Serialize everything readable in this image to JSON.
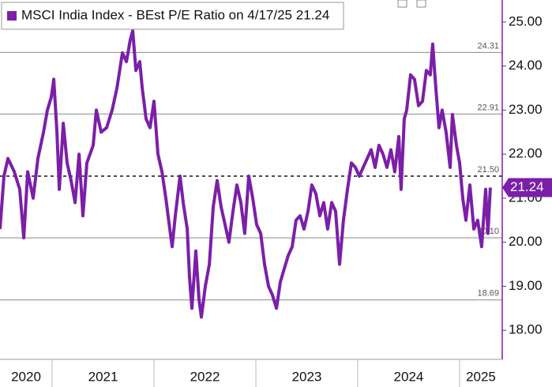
{
  "chart_data": {
    "type": "line",
    "ylim": [
      17.34,
      25.5
    ],
    "yticks": [
      {
        "value": 25,
        "label": "25.00"
      },
      {
        "value": 24,
        "label": "24.00"
      },
      {
        "value": 23,
        "label": "23.00"
      },
      {
        "value": 22,
        "label": "22.00"
      },
      {
        "value": 21,
        "label": "21.00"
      },
      {
        "value": 20,
        "label": "20.00"
      },
      {
        "value": 19,
        "label": "19.00"
      },
      {
        "value": 18,
        "label": "18.00"
      }
    ],
    "xlim": [
      2020.488,
      2025.419
    ],
    "xticks": [
      2021,
      2022,
      2023,
      2024,
      2025
    ],
    "categories": [
      "2020",
      "2021",
      "2022",
      "2023",
      "2024",
      "2025"
    ],
    "reference_lines": [
      {
        "value": 24.31,
        "label": "24.31",
        "style": "solid"
      },
      {
        "value": 22.91,
        "label": "22.91",
        "style": "solid"
      },
      {
        "value": 21.5,
        "label": "21.50",
        "style": "dashed"
      },
      {
        "value": 20.1,
        "label": "20.10",
        "style": "solid"
      },
      {
        "value": 18.69,
        "label": "18.69",
        "style": "solid"
      }
    ],
    "series": [
      {
        "name": "MSCI India Index - BEst P/E Ratio on 4/17/25 21.24",
        "color": "#7b1fa8",
        "last_label": "21.24",
        "x": [
          2020.488,
          2020.527,
          2020.566,
          2020.628,
          2020.682,
          2020.721,
          2020.76,
          2020.814,
          2020.86,
          2020.915,
          2020.953,
          2020.992,
          2021.016,
          2021.047,
          2021.07,
          2021.109,
          2021.147,
          2021.186,
          2021.225,
          2021.264,
          2021.302,
          2021.341,
          2021.403,
          2021.434,
          2021.481,
          2021.535,
          2021.589,
          2021.636,
          2021.69,
          2021.729,
          2021.767,
          2021.791,
          2021.822,
          2021.86,
          2021.884,
          2021.922,
          2021.961,
          2022.0,
          2022.039,
          2022.078,
          2022.116,
          2022.155,
          2022.178,
          2022.209,
          2022.256,
          2022.287,
          2022.326,
          2022.349,
          2022.372,
          2022.411,
          2022.442,
          2022.465,
          2022.504,
          2022.543,
          2022.581,
          2022.62,
          2022.659,
          2022.698,
          2022.736,
          2022.775,
          2022.814,
          2022.853,
          2022.891,
          2022.93,
          2022.969,
          2023.008,
          2023.047,
          2023.085,
          2023.124,
          2023.163,
          2023.202,
          2023.24,
          2023.279,
          2023.318,
          2023.357,
          2023.395,
          2023.434,
          2023.473,
          2023.512,
          2023.55,
          2023.589,
          2023.628,
          2023.667,
          2023.705,
          2023.744,
          2023.783,
          2023.822,
          2023.86,
          2023.899,
          2023.938,
          2023.977,
          2024.016,
          2024.054,
          2024.093,
          2024.132,
          2024.171,
          2024.209,
          2024.248,
          2024.287,
          2024.326,
          2024.364,
          2024.403,
          2024.426,
          2024.457,
          2024.481,
          2024.519,
          2024.558,
          2024.597,
          2024.636,
          2024.674,
          2024.713,
          2024.736,
          2024.767,
          2024.798,
          2024.829,
          2024.868,
          2024.907,
          2024.93,
          2024.969,
          2025.0,
          2025.031,
          2025.062,
          2025.101,
          2025.14,
          2025.178,
          2025.217,
          2025.256,
          2025.279,
          2025.302
        ],
        "values": [
          20.3,
          21.5,
          21.9,
          21.6,
          21.2,
          20.1,
          21.6,
          21.0,
          21.9,
          22.5,
          23.0,
          23.3,
          23.7,
          22.5,
          21.2,
          22.7,
          21.8,
          21.4,
          20.9,
          22.0,
          20.6,
          21.8,
          22.2,
          23.0,
          22.5,
          22.6,
          23.0,
          23.5,
          24.3,
          24.1,
          24.6,
          24.8,
          23.9,
          24.1,
          23.5,
          22.8,
          22.6,
          23.2,
          22.0,
          21.6,
          21.0,
          20.3,
          19.9,
          20.6,
          21.5,
          20.9,
          20.3,
          19.2,
          18.5,
          19.8,
          18.7,
          18.3,
          19.0,
          19.5,
          20.8,
          21.4,
          20.8,
          20.4,
          20.0,
          20.7,
          21.3,
          20.9,
          20.2,
          21.5,
          21.0,
          20.4,
          20.2,
          19.5,
          19.0,
          18.8,
          18.5,
          19.1,
          19.4,
          19.7,
          19.9,
          20.5,
          20.6,
          20.3,
          20.7,
          21.3,
          21.1,
          20.6,
          20.9,
          20.3,
          20.9,
          20.7,
          19.5,
          20.5,
          21.2,
          21.8,
          21.7,
          21.5,
          21.7,
          21.9,
          22.1,
          21.7,
          22.2,
          22.0,
          21.7,
          22.1,
          21.6,
          22.4,
          21.2,
          22.8,
          23.0,
          23.8,
          23.7,
          23.1,
          23.2,
          23.9,
          23.8,
          24.5,
          23.5,
          22.6,
          23.0,
          22.5,
          21.7,
          22.9,
          22.2,
          21.8,
          21.0,
          20.5,
          21.3,
          20.3,
          20.5,
          19.9,
          21.2,
          20.2,
          21.24
        ]
      }
    ]
  }
}
